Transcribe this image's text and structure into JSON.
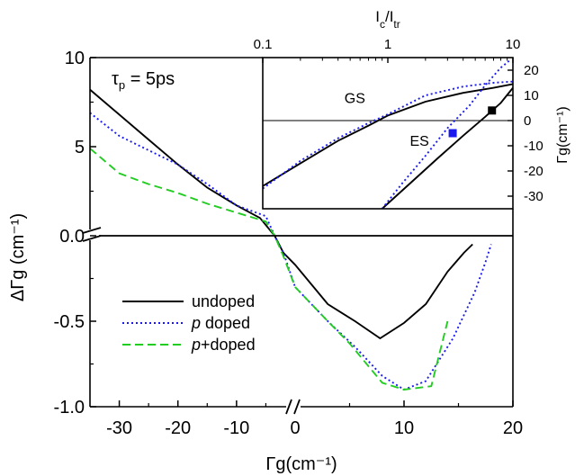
{
  "chart_data": [
    {
      "type": "line",
      "panel": "main",
      "xlabel": "Γg(cm⁻¹)",
      "ylabel": "ΔΓg (cm⁻¹)",
      "annotation": "τp = 5ps",
      "annotation_parts": {
        "main": "τ",
        "sub": "p",
        "rest": " = 5ps"
      },
      "x_axis_break": true,
      "y_axis_break": true,
      "xlim_left": [
        -35,
        0
      ],
      "xlim_right": [
        0,
        20
      ],
      "ylim_top": [
        0,
        10
      ],
      "ylim_bottom": [
        -1.0,
        0
      ],
      "x_ticks": [
        {
          "value": -30,
          "label": "-30"
        },
        {
          "value": -20,
          "label": "-20"
        },
        {
          "value": -10,
          "label": "-10"
        },
        {
          "value": 0,
          "label": "0"
        },
        {
          "value": 10,
          "label": "10"
        },
        {
          "value": 20,
          "label": "20"
        }
      ],
      "y_ticks_top": [
        {
          "value": 10,
          "label": "10"
        },
        {
          "value": 5,
          "label": "5"
        },
        {
          "value": 0,
          "label": "0.0"
        }
      ],
      "y_ticks_bottom": [
        {
          "value": -0.5,
          "label": "-0.5"
        },
        {
          "value": -1.0,
          "label": "-1.0"
        }
      ],
      "legend_position": "bottom-left",
      "series": [
        {
          "name": "undoped",
          "legend_parts": [
            {
              "text": "undoped",
              "italic": false
            }
          ],
          "color": "#000000",
          "dash": "solid",
          "points": [
            [
              -35,
              8.2
            ],
            [
              -30,
              6.8
            ],
            [
              -25,
              5.4
            ],
            [
              -20,
              4.0
            ],
            [
              -15,
              2.7
            ],
            [
              -10,
              1.7
            ],
            [
              -6,
              1.0
            ],
            [
              -3.5,
              0.0
            ],
            [
              -2,
              -0.1
            ],
            [
              0,
              -0.17
            ],
            [
              3,
              -0.4
            ],
            [
              5.5,
              -0.5
            ],
            [
              7.8,
              -0.6
            ],
            [
              10,
              -0.51
            ],
            [
              12,
              -0.4
            ],
            [
              14,
              -0.21
            ],
            [
              15.5,
              -0.1
            ],
            [
              16.3,
              -0.05
            ]
          ]
        },
        {
          "name": "p doped",
          "legend_parts": [
            {
              "text": "p",
              "italic": true
            },
            {
              "text": " doped",
              "italic": false
            }
          ],
          "color": "#1a1aee",
          "dash": "dotted",
          "points": [
            [
              -35,
              6.9
            ],
            [
              -30,
              5.6
            ],
            [
              -25,
              4.8
            ],
            [
              -20,
              4.0
            ],
            [
              -15,
              2.9
            ],
            [
              -10,
              1.7
            ],
            [
              -5,
              1.1
            ],
            [
              -3.5,
              0.0
            ],
            [
              -2,
              -0.1
            ],
            [
              0,
              -0.3
            ],
            [
              3,
              -0.5
            ],
            [
              5.5,
              -0.65
            ],
            [
              8,
              -0.82
            ],
            [
              10,
              -0.9
            ],
            [
              12,
              -0.85
            ],
            [
              14.5,
              -0.6
            ],
            [
              16.5,
              -0.33
            ],
            [
              17.5,
              -0.15
            ],
            [
              18,
              -0.05
            ]
          ]
        },
        {
          "name": "p+doped",
          "legend_parts": [
            {
              "text": "p",
              "italic": true
            },
            {
              "text": "+doped",
              "italic": false
            }
          ],
          "color": "#22cc22",
          "dash": "dashed",
          "points": [
            [
              -35,
              4.9
            ],
            [
              -30,
              3.5
            ],
            [
              -25,
              2.9
            ],
            [
              -20,
              2.4
            ],
            [
              -15,
              1.8
            ],
            [
              -10,
              1.3
            ],
            [
              -5,
              0.8
            ],
            [
              -3.5,
              0.0
            ],
            [
              -2,
              -0.12
            ],
            [
              0,
              -0.3
            ],
            [
              3,
              -0.5
            ],
            [
              5,
              -0.63
            ],
            [
              8,
              -0.86
            ],
            [
              10,
              -0.9
            ],
            [
              12.5,
              -0.88
            ],
            [
              14,
              -0.5
            ]
          ]
        }
      ]
    },
    {
      "type": "line",
      "panel": "inset",
      "xlabel_parts": [
        {
          "text": "I",
          "sub": false
        },
        {
          "text": "c",
          "sub": true
        },
        {
          "text": "/I",
          "sub": false
        },
        {
          "text": "tr",
          "sub": true
        }
      ],
      "ylabel": "Γg(cm⁻¹)",
      "x_scale": "log",
      "xlim": [
        0.1,
        10
      ],
      "ylim": [
        -35,
        25
      ],
      "x_ticks": [
        {
          "value": 0.1,
          "label": "0.1"
        },
        {
          "value": 1,
          "label": "1"
        },
        {
          "value": 10,
          "label": "10"
        }
      ],
      "y_ticks": [
        {
          "value": 20,
          "label": "20"
        },
        {
          "value": 10,
          "label": "10"
        },
        {
          "value": 0,
          "label": "0"
        },
        {
          "value": -10,
          "label": "-10"
        },
        {
          "value": -20,
          "label": "-20"
        },
        {
          "value": -30,
          "label": "-30"
        }
      ],
      "annotations": [
        {
          "text": "GS",
          "x": 0.45,
          "y": 7
        },
        {
          "text": "ES",
          "x": 1.5,
          "y": -10
        }
      ],
      "series": [
        {
          "color": "#000000",
          "dash": "solid",
          "points": [
            [
              0.1,
              -26
            ],
            [
              0.2,
              -17
            ],
            [
              0.4,
              -8
            ],
            [
              0.7,
              -2
            ],
            [
              1,
              2
            ],
            [
              2,
              7.5
            ],
            [
              4,
              11
            ],
            [
              7,
              13
            ],
            [
              10,
              14.5
            ]
          ]
        },
        {
          "color": "#1a1aee",
          "dash": "dotted",
          "points": [
            [
              0.1,
              -27
            ],
            [
              0.2,
              -16
            ],
            [
              0.4,
              -7
            ],
            [
              0.7,
              -1
            ],
            [
              1,
              2.5
            ],
            [
              2,
              10
            ],
            [
              4,
              13.5
            ],
            [
              7,
              15
            ],
            [
              10,
              15.5
            ]
          ]
        },
        {
          "color": "#000000",
          "dash": "solid",
          "points": [
            [
              0.9,
              -35
            ],
            [
              1.5,
              -25
            ],
            [
              2.5,
              -15
            ],
            [
              4,
              -6
            ],
            [
              6,
              1.5
            ],
            [
              8,
              7
            ],
            [
              10,
              13
            ]
          ]
        },
        {
          "color": "#1a1aee",
          "dash": "dotted",
          "points": [
            [
              0.9,
              -35
            ],
            [
              1.3,
              -25
            ],
            [
              2,
              -14
            ],
            [
              3,
              -3
            ],
            [
              4.5,
              6
            ],
            [
              6,
              14
            ],
            [
              8,
              21
            ],
            [
              9.5,
              24
            ]
          ]
        }
      ],
      "markers": [
        {
          "x": 3.3,
          "y": -5,
          "color": "#1a1aee",
          "shape": "square"
        },
        {
          "x": 6.8,
          "y": 4,
          "color": "#000000",
          "shape": "square"
        }
      ]
    }
  ]
}
